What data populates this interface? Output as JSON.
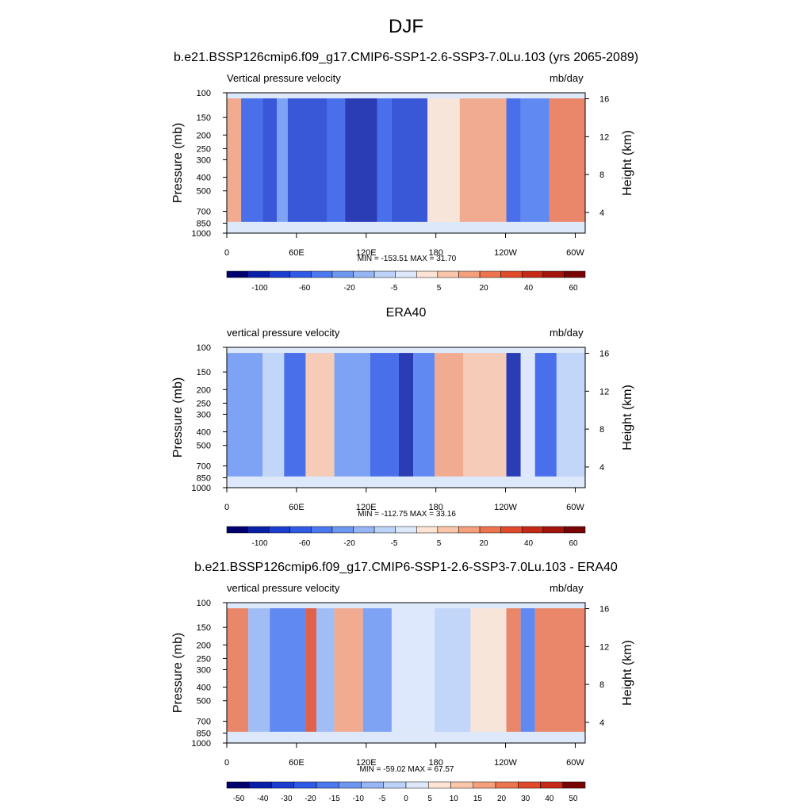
{
  "main_title": "DJF",
  "chart_data": [
    {
      "type": "heatmap",
      "title": "b.e21.BSSP126cmip6.f09_g17.CMIP6-SSP1-2.6-SSP3-7.0Lu.103 (yrs 2065-2089)",
      "left_label": "Vertical pressure velocity",
      "right_label": "mb/day",
      "ylabel": "Pressure (mb)",
      "y2label": "Height (km)",
      "xticks": [
        "0",
        "60E",
        "120E",
        "180",
        "120W",
        "60W"
      ],
      "yticks": [
        "100",
        "150",
        "200",
        "250",
        "300",
        "400",
        "500",
        "700",
        "850",
        "1000"
      ],
      "y2ticks": [
        "16",
        "12",
        "8",
        "4"
      ],
      "stats": "MIN = -153.51  MAX =  31.70",
      "colorbar_labels": [
        "-100",
        "-60",
        "-20",
        "-5",
        "5",
        "20",
        "40",
        "60"
      ],
      "colormap": [
        "#00006e",
        "#0a1fa8",
        "#1c3ed0",
        "#2f5ae6",
        "#4a78ee",
        "#6e97f2",
        "#96b5f5",
        "#bcd2f8",
        "#dde8fb",
        "#fde4d4",
        "#fac6aa",
        "#f4a07c",
        "#ec7550",
        "#e04a2a",
        "#c62a16",
        "#a3140c",
        "#780404"
      ]
    },
    {
      "type": "heatmap",
      "title": "ERA40",
      "left_label": "vertical pressure velocity",
      "right_label": "mb/day",
      "ylabel": "Pressure (mb)",
      "y2label": "Height (km)",
      "xticks": [
        "0",
        "60E",
        "120E",
        "180",
        "120W",
        "60W"
      ],
      "yticks": [
        "100",
        "150",
        "200",
        "250",
        "300",
        "400",
        "500",
        "700",
        "850",
        "1000"
      ],
      "y2ticks": [
        "16",
        "12",
        "8",
        "4"
      ],
      "stats": "MIN = -112.75  MAX =  33.16",
      "colorbar_labels": [
        "-100",
        "-60",
        "-20",
        "-5",
        "5",
        "20",
        "40",
        "60"
      ],
      "colormap": [
        "#00006e",
        "#0a1fa8",
        "#1c3ed0",
        "#2f5ae6",
        "#4a78ee",
        "#6e97f2",
        "#96b5f5",
        "#bcd2f8",
        "#dde8fb",
        "#fde4d4",
        "#fac6aa",
        "#f4a07c",
        "#ec7550",
        "#e04a2a",
        "#c62a16",
        "#a3140c",
        "#780404"
      ]
    },
    {
      "type": "heatmap",
      "title": "b.e21.BSSP126cmip6.f09_g17.CMIP6-SSP1-2.6-SSP3-7.0Lu.103 - ERA40",
      "left_label": "vertical pressure velocity",
      "right_label": "mb/day",
      "ylabel": "Pressure (mb)",
      "y2label": "Height (km)",
      "xticks": [
        "0",
        "60E",
        "120E",
        "180",
        "120W",
        "60W"
      ],
      "yticks": [
        "100",
        "150",
        "200",
        "250",
        "300",
        "400",
        "500",
        "700",
        "850",
        "1000"
      ],
      "y2ticks": [
        "16",
        "12",
        "8",
        "4"
      ],
      "stats": "MIN = -59.02  MAX =  67.57",
      "colorbar_labels": [
        "-50",
        "-40",
        "-30",
        "-20",
        "-15",
        "-10",
        "-5",
        "0",
        "5",
        "10",
        "15",
        "20",
        "30",
        "40",
        "50"
      ],
      "colormap": [
        "#00006e",
        "#0a1fa8",
        "#1c3ed0",
        "#2f5ae6",
        "#4a78ee",
        "#6e97f2",
        "#96b5f5",
        "#bcd2f8",
        "#dde8fb",
        "#fde4d4",
        "#fac6aa",
        "#f4a07c",
        "#ec7550",
        "#e04a2a",
        "#c62a16",
        "#780404"
      ]
    }
  ]
}
